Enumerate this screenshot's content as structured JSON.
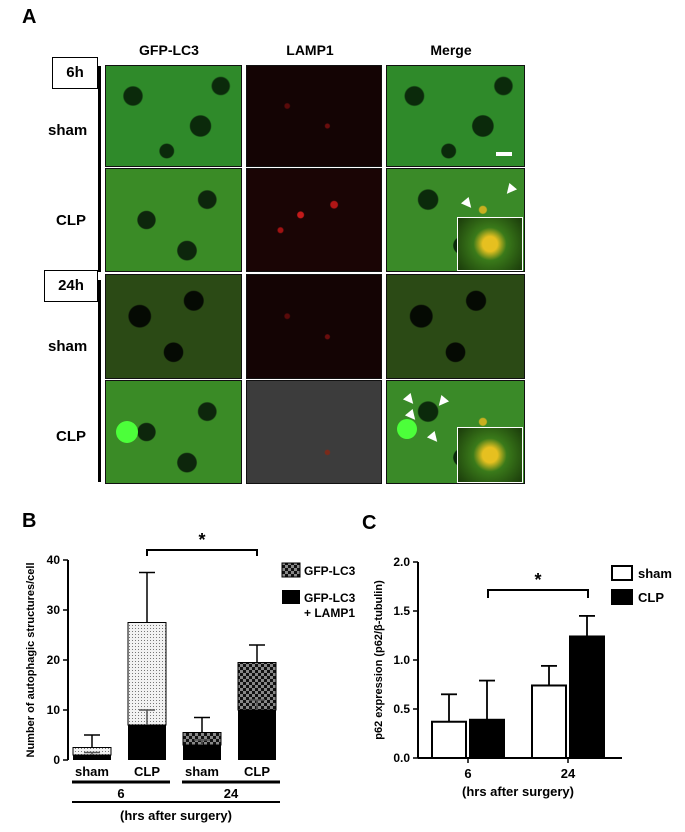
{
  "panel_a": {
    "letter": "A",
    "columns": [
      "GFP-LC3",
      "LAMP1",
      "Merge"
    ],
    "time_6": "6h",
    "time_24": "24h",
    "rows": [
      "sham",
      "CLP",
      "sham",
      "CLP"
    ]
  },
  "panel_b": {
    "letter": "B",
    "ylabel": "Number of autophagic structures/cell",
    "legend": [
      "GFP-LC3",
      "GFP-LC3\n+ LAMP1"
    ],
    "legend_line1": "GFP-LC3",
    "legend_line2a": "GFP-LC3",
    "legend_line2b": "+ LAMP1",
    "significance": "*",
    "group_labels": [
      "6",
      "24"
    ],
    "xlabel": "(hrs after surgery)"
  },
  "panel_c": {
    "letter": "C",
    "ylabel": "p62 expression (p62/β-tubulin)",
    "legend": [
      "sham",
      "CLP"
    ],
    "significance": "*",
    "xlabel": "(hrs after surgery)"
  },
  "chart_data": [
    {
      "type": "bar",
      "stacked": true,
      "categories": [
        "sham",
        "CLP",
        "sham",
        "CLP"
      ],
      "groups": [
        "6",
        "6",
        "24",
        "24"
      ],
      "series": [
        {
          "name": "GFP-LC3 + LAMP1",
          "values": [
            1,
            7,
            3,
            10
          ],
          "errors": [
            0.5,
            3,
            1,
            2
          ]
        },
        {
          "name": "GFP-LC3",
          "values": [
            1.5,
            20.5,
            2.5,
            9.5
          ],
          "errors": [
            2.5,
            10,
            3,
            3.5
          ]
        }
      ],
      "ylabel": "Number of autophagic structures/cell",
      "xlabel": "(hrs after surgery)",
      "ylim": [
        0,
        40
      ],
      "yticks": [
        0,
        10,
        20,
        30,
        40
      ],
      "significance": "*"
    },
    {
      "type": "bar",
      "categories": [
        "6",
        "24"
      ],
      "series": [
        {
          "name": "sham",
          "values": [
            0.37,
            0.74
          ],
          "errors": [
            0.28,
            0.2
          ]
        },
        {
          "name": "CLP",
          "values": [
            0.39,
            1.24
          ],
          "errors": [
            0.4,
            0.21
          ]
        }
      ],
      "ylabel": "p62 expression (p62/β-tubulin)",
      "xlabel": "(hrs after surgery)",
      "ylim": [
        0,
        2.0
      ],
      "yticks": [
        "0.0",
        "0.5",
        "1.0",
        "1.5",
        "2.0"
      ],
      "significance": "*"
    }
  ]
}
